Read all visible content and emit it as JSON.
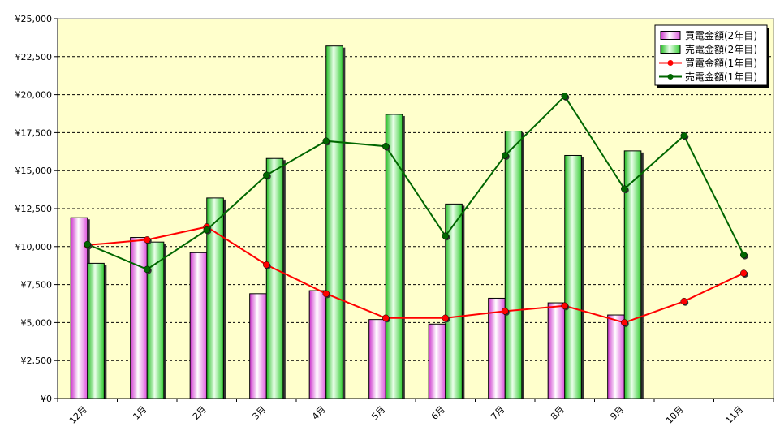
{
  "chart_data": {
    "type": "bar",
    "categories": [
      "12月",
      "1月",
      "2月",
      "3月",
      "4月",
      "5月",
      "6月",
      "7月",
      "8月",
      "9月",
      "10月",
      "11月"
    ],
    "ylim": [
      0,
      25000
    ],
    "yticks": [
      0,
      2500,
      5000,
      7500,
      10000,
      12500,
      15000,
      17500,
      20000,
      22500,
      25000
    ],
    "ytick_labels": [
      "¥0",
      "¥2,500",
      "¥5,000",
      "¥7,500",
      "¥10,000",
      "¥12,500",
      "¥15,000",
      "¥17,500",
      "¥20,000",
      "¥22,500",
      "¥25,000"
    ],
    "grid": true,
    "legend_position": "top-right",
    "series": [
      {
        "name": "買電金額(2年目)",
        "kind": "bar",
        "color": "#ff99ff",
        "values": [
          11900,
          10600,
          9600,
          6900,
          7100,
          5200,
          4900,
          6600,
          6300,
          5500,
          null,
          null
        ]
      },
      {
        "name": "売電金額(2年目)",
        "kind": "bar",
        "color": "#33cc33",
        "values": [
          8900,
          10300,
          13200,
          15800,
          23200,
          18700,
          12800,
          17600,
          16000,
          16300,
          null,
          null
        ]
      },
      {
        "name": "買電金額(1年目)",
        "kind": "line",
        "color": "#ff0000",
        "values": [
          10100,
          10450,
          11300,
          8800,
          6900,
          5300,
          5300,
          5750,
          6100,
          5000,
          6400,
          8250
        ]
      },
      {
        "name": "売電金額(1年目)",
        "kind": "line",
        "color": "#006600",
        "values": [
          10150,
          8500,
          11100,
          14700,
          16950,
          16600,
          10700,
          16000,
          19900,
          13800,
          17300,
          9450
        ]
      }
    ]
  }
}
